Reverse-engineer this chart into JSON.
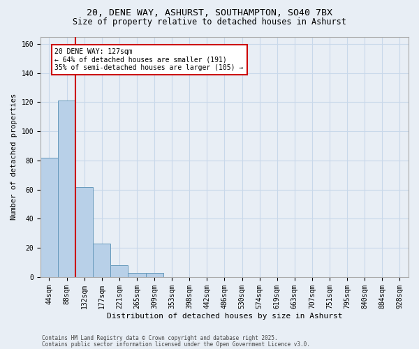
{
  "title_line1": "20, DENE WAY, ASHURST, SOUTHAMPTON, SO40 7BX",
  "title_line2": "Size of property relative to detached houses in Ashurst",
  "xlabel": "Distribution of detached houses by size in Ashurst",
  "ylabel": "Number of detached properties",
  "bar_categories": [
    "44sqm",
    "88sqm",
    "132sqm",
    "177sqm",
    "221sqm",
    "265sqm",
    "309sqm",
    "353sqm",
    "398sqm",
    "442sqm",
    "486sqm",
    "530sqm",
    "574sqm",
    "619sqm",
    "663sqm",
    "707sqm",
    "751sqm",
    "795sqm",
    "840sqm",
    "884sqm",
    "928sqm"
  ],
  "bar_values": [
    82,
    121,
    62,
    23,
    8,
    3,
    3,
    0,
    0,
    0,
    0,
    0,
    0,
    0,
    0,
    0,
    0,
    0,
    0,
    0,
    0
  ],
  "bar_color": "#b8d0e8",
  "bar_edge_color": "#6699bb",
  "grid_color": "#c8d8ea",
  "background_color": "#e8eef5",
  "vline_color": "#cc0000",
  "vline_position": 2.5,
  "annotation_text": "20 DENE WAY: 127sqm\n← 64% of detached houses are smaller (191)\n35% of semi-detached houses are larger (105) →",
  "annotation_box_facecolor": "#ffffff",
  "annotation_box_edgecolor": "#cc0000",
  "footer_line1": "Contains HM Land Registry data © Crown copyright and database right 2025.",
  "footer_line2": "Contains public sector information licensed under the Open Government Licence v3.0.",
  "ylim": [
    0,
    165
  ],
  "yticks": [
    0,
    20,
    40,
    60,
    80,
    100,
    120,
    140,
    160
  ],
  "figsize": [
    6.0,
    5.0
  ],
  "dpi": 100,
  "title_fontsize": 9.5,
  "subtitle_fontsize": 8.5,
  "xlabel_fontsize": 8,
  "ylabel_fontsize": 7.5,
  "tick_fontsize": 7,
  "footer_fontsize": 5.5,
  "annot_fontsize": 7
}
